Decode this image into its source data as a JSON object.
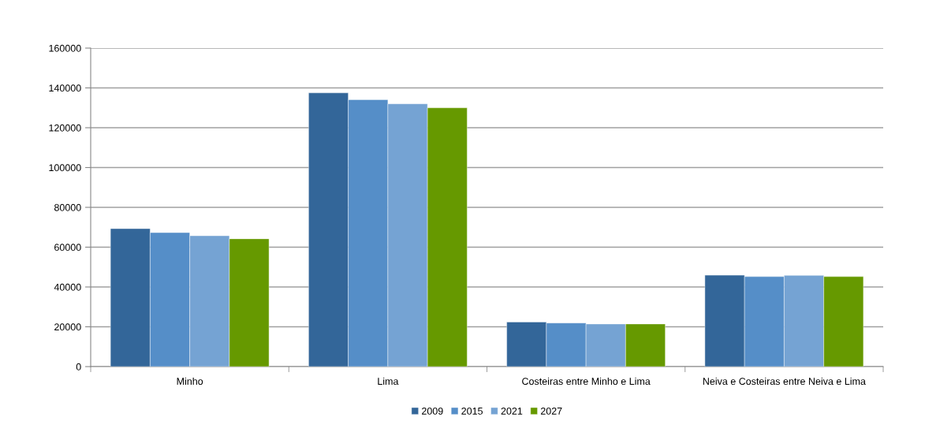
{
  "chart_data": {
    "type": "bar",
    "categories": [
      "Minho",
      "Lima",
      "Costeiras entre Minho e Lima",
      "Neiva e Costeiras entre Neiva e Lima"
    ],
    "series": [
      {
        "name": "2009",
        "color": "#336699",
        "values": [
          69300,
          137500,
          22400,
          45900
        ]
      },
      {
        "name": "2015",
        "color": "#558ec8",
        "values": [
          67300,
          134100,
          21900,
          45200
        ]
      },
      {
        "name": "2021",
        "color": "#75a3d3",
        "values": [
          65700,
          132000,
          21400,
          45800
        ]
      },
      {
        "name": "2027",
        "color": "#669900",
        "values": [
          64200,
          130000,
          21400,
          45200
        ]
      }
    ],
    "ylim": [
      0,
      160000
    ],
    "yticks": [
      0,
      20000,
      40000,
      60000,
      80000,
      100000,
      120000,
      140000,
      160000
    ],
    "grid": "y",
    "legend": "bottom"
  }
}
